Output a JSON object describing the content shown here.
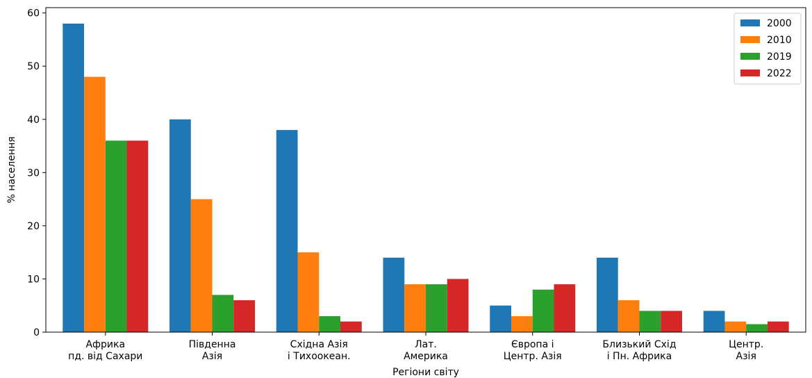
{
  "chart_data": {
    "type": "bar",
    "xlabel": "Регіони світу",
    "ylabel": "% населення",
    "ylim": [
      0,
      61
    ],
    "yticks": [
      0,
      10,
      20,
      30,
      40,
      50,
      60
    ],
    "grid": false,
    "legend_position": "top-right",
    "categories": [
      [
        "Африка",
        "пд. від Сахари"
      ],
      [
        "Південна",
        "Азія"
      ],
      [
        "Східна Азія",
        "і Тихоокеан."
      ],
      [
        "Лат.",
        "Америка"
      ],
      [
        "Європа і",
        "Центр. Азія"
      ],
      [
        "Близький Схід",
        "і Пн. Африка"
      ],
      [
        "Центр.",
        "Азія"
      ]
    ],
    "series": [
      {
        "name": "2000",
        "color": "#1f77b4",
        "values": [
          58,
          40,
          38,
          14,
          5,
          14,
          4
        ]
      },
      {
        "name": "2010",
        "color": "#ff7f0e",
        "values": [
          48,
          25,
          15,
          9,
          3,
          6,
          2
        ]
      },
      {
        "name": "2019",
        "color": "#2ca02c",
        "values": [
          36,
          7,
          3,
          9,
          8,
          4,
          1.5
        ]
      },
      {
        "name": "2022",
        "color": "#d62728",
        "values": [
          36,
          6,
          2,
          10,
          9,
          4,
          2
        ]
      }
    ]
  }
}
